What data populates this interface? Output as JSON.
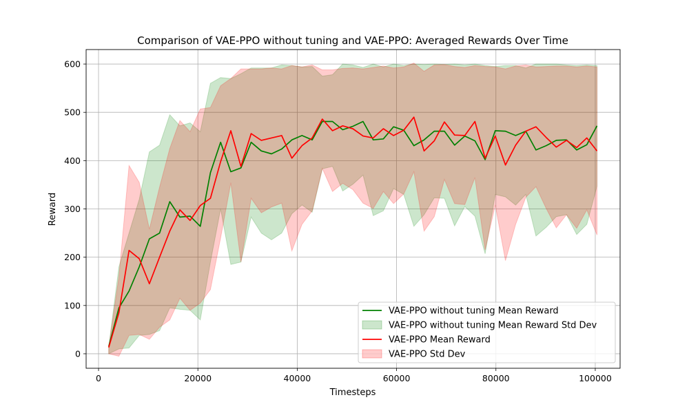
{
  "chart_data": {
    "type": "line",
    "title": "Comparison of VAE-PPO without tuning and VAE-PPO: Averaged Rewards Over Time",
    "xlabel": "Timesteps",
    "ylabel": "Reward",
    "xlim": [
      -2500,
      105000
    ],
    "ylim": [
      -30,
      630
    ],
    "xticks": [
      0,
      20000,
      40000,
      60000,
      80000,
      100000
    ],
    "yticks": [
      0,
      100,
      200,
      300,
      400,
      500,
      600
    ],
    "grid": true,
    "legend_position": "lower-right",
    "x": [
      2048,
      4096,
      6144,
      8192,
      10240,
      12288,
      14336,
      16384,
      18432,
      20480,
      22528,
      24576,
      26624,
      28672,
      30720,
      32768,
      34816,
      36864,
      38912,
      40960,
      43008,
      45056,
      47104,
      49152,
      51200,
      53248,
      55296,
      57344,
      59392,
      61440,
      63488,
      65536,
      67584,
      69632,
      71680,
      73728,
      75776,
      77824,
      79872,
      81920,
      83968,
      86016,
      88064,
      90112,
      92160,
      94208,
      96256,
      98304,
      100352
    ],
    "series": [
      {
        "name": "VAE-PPO without tuning Mean Reward",
        "band_name": "VAE-PPO without tuning Mean Reward Std Dev",
        "color": "#008000",
        "values": [
          15,
          95,
          130,
          180,
          238,
          250,
          315,
          283,
          285,
          264,
          375,
          438,
          377,
          385,
          438,
          420,
          414,
          424,
          443,
          452,
          443,
          481,
          481,
          464,
          471,
          481,
          443,
          445,
          470,
          463,
          431,
          443,
          461,
          461,
          432,
          451,
          441,
          402,
          462,
          461,
          452,
          461,
          422,
          431,
          442,
          443,
          422,
          433,
          472
        ],
        "upper": [
          15,
          180,
          250,
          320,
          418,
          432,
          495,
          472,
          478,
          460,
          560,
          572,
          570,
          580,
          592,
          592,
          592,
          598,
          597,
          594,
          595,
          575,
          578,
          600,
          598,
          593,
          600,
          594,
          600,
          597,
          600,
          599,
          600,
          599,
          600,
          598,
          600,
          597,
          595,
          597,
          597,
          592,
          600,
          600,
          600,
          598,
          597,
          598,
          597
        ],
        "lower": [
          0,
          10,
          12,
          38,
          40,
          48,
          95,
          92,
          90,
          70,
          190,
          300,
          185,
          190,
          283,
          250,
          236,
          250,
          290,
          308,
          293,
          383,
          388,
          337,
          351,
          370,
          286,
          296,
          342,
          330,
          264,
          288,
          323,
          322,
          265,
          305,
          285,
          207,
          330,
          325,
          308,
          330,
          244,
          262,
          284,
          288,
          247,
          268,
          347
        ]
      },
      {
        "name": "VAE-PPO Mean Reward",
        "band_name": "VAE-PPO Std Dev",
        "color": "#ff0000",
        "values": [
          13,
          85,
          214,
          197,
          145,
          200,
          254,
          298,
          276,
          307,
          322,
          398,
          462,
          388,
          456,
          442,
          447,
          452,
          405,
          431,
          447,
          486,
          462,
          472,
          466,
          451,
          447,
          466,
          452,
          463,
          490,
          420,
          441,
          480,
          453,
          452,
          481,
          405,
          451,
          391,
          432,
          461,
          470,
          448,
          428,
          442,
          427,
          447,
          420
        ],
        "upper": [
          13,
          160,
          390,
          355,
          258,
          345,
          425,
          483,
          460,
          507,
          510,
          555,
          570,
          590,
          590,
          590,
          592,
          590,
          597,
          594,
          598,
          588,
          588,
          591,
          592,
          590,
          593,
          596,
          592,
          594,
          602,
          585,
          598,
          599,
          595,
          593,
          597,
          595,
          594,
          590,
          596,
          598,
          594,
          595,
          596,
          596,
          594,
          596,
          594
        ],
        "lower": [
          0,
          -5,
          38,
          40,
          30,
          55,
          70,
          115,
          90,
          105,
          133,
          240,
          354,
          190,
          322,
          292,
          304,
          312,
          213,
          268,
          296,
          384,
          336,
          353,
          340,
          312,
          301,
          336,
          311,
          331,
          377,
          254,
          284,
          361,
          311,
          309,
          365,
          215,
          308,
          193,
          268,
          324,
          346,
          301,
          261,
          288,
          260,
          298,
          246
        ]
      }
    ]
  }
}
